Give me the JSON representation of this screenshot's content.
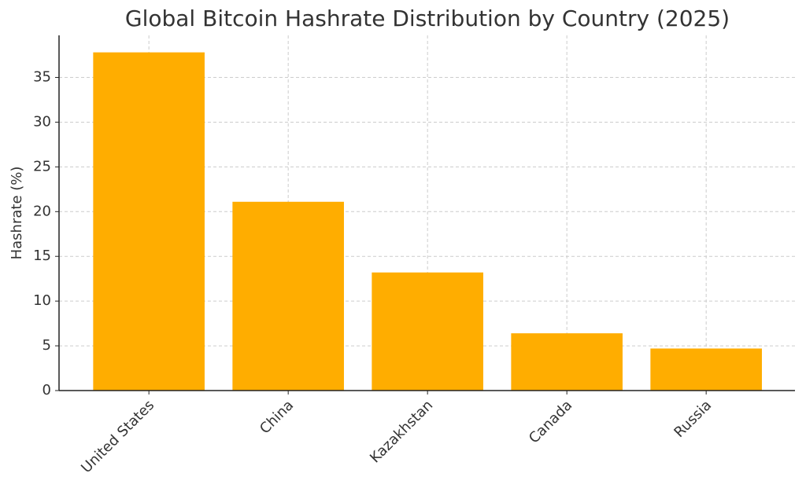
{
  "chart_data": {
    "type": "bar",
    "title": "Global Bitcoin Hashrate Distribution by Country (2025)",
    "y_label": "Hashrate (%)",
    "categories": [
      "United States",
      "China",
      "Kazakhstan",
      "Canada",
      "Russia"
    ],
    "values": [
      37.8,
      21.1,
      13.2,
      6.4,
      4.7
    ],
    "color": "#ffad00",
    "ylim": [
      0,
      39.7
    ],
    "yticks": [
      0,
      5,
      10,
      15,
      20,
      25,
      30,
      35
    ],
    "grid": true
  }
}
